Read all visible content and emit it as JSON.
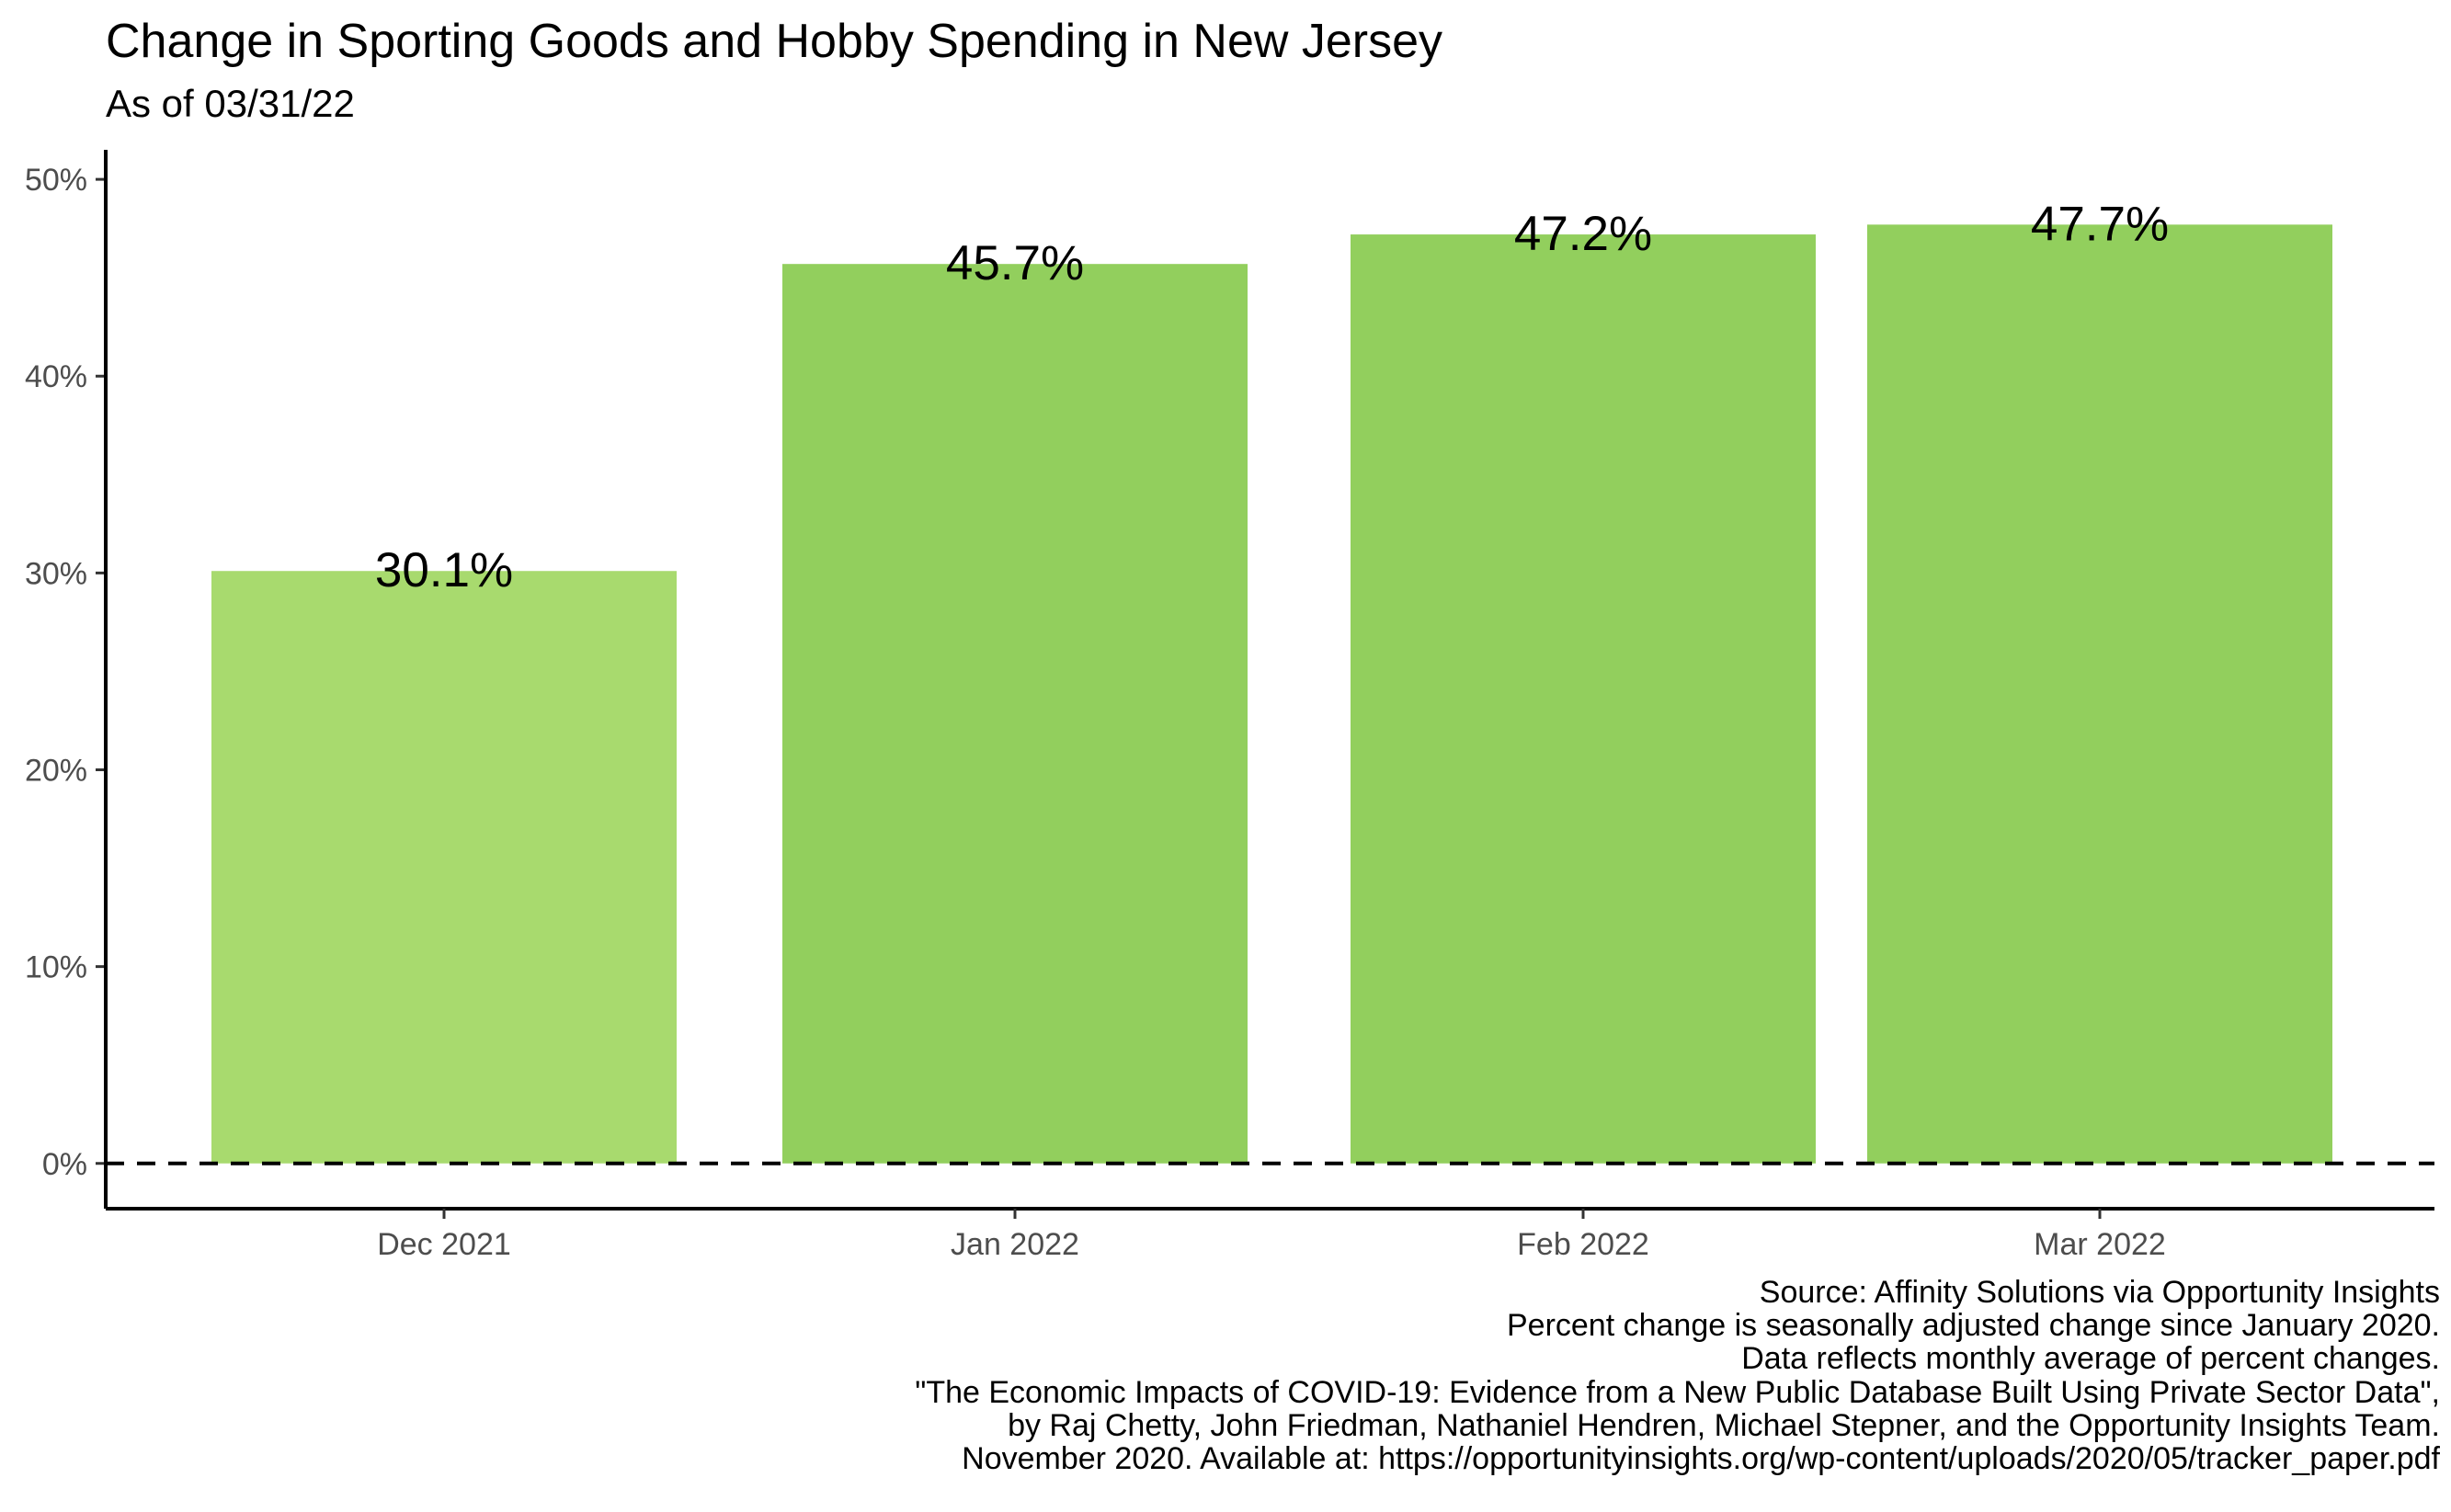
{
  "chart_data": {
    "type": "bar",
    "title": "Change in Sporting Goods and Hobby Spending in New Jersey",
    "subtitle": "As of 03/31/22",
    "categories": [
      "Dec 2021",
      "Jan 2022",
      "Feb 2022",
      "Mar 2022"
    ],
    "values": [
      30.1,
      45.7,
      47.2,
      47.7
    ],
    "data_labels": [
      "30.1%",
      "45.7%",
      "47.2%",
      "47.7%"
    ],
    "bar_colors": [
      "#a8da6e",
      "#92cf5d",
      "#92cf5d",
      "#92cf5d"
    ],
    "ylim": [
      -2.3,
      51.5
    ],
    "y_ticks": [
      0,
      10,
      20,
      30,
      40,
      50
    ],
    "y_tick_labels": [
      "0%",
      "10%",
      "20%",
      "30%",
      "40%",
      "50%"
    ],
    "xlabel": "",
    "ylabel": "",
    "reference_line": {
      "value": 0,
      "style": "dashed"
    },
    "grid": false,
    "legend": "none"
  },
  "caption": [
    "Source: Affinity Solutions via Opportunity Insights",
    "Percent change is seasonally adjusted change since January 2020.",
    "Data reflects monthly average of percent changes.",
    "\"The Economic Impacts of COVID-19: Evidence from a New Public Database Built Using Private Sector Data\",",
    "by Raj Chetty, John Friedman, Nathaniel Hendren, Michael Stepner, and the Opportunity Insights Team.",
    "November 2020. Available at: https://opportunityinsights.org/wp-content/uploads/2020/05/tracker_paper.pdf"
  ]
}
